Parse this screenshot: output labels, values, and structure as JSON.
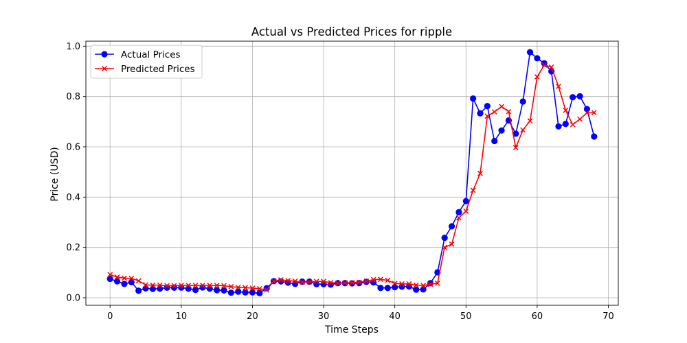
{
  "chart_data": {
    "type": "line",
    "title": "Actual vs Predicted Prices for ripple",
    "xlabel": "Time Steps",
    "ylabel": "Price (USD)",
    "xlim": [
      -3.4,
      71.4
    ],
    "ylim": [
      -0.03,
      1.02
    ],
    "xticks": [
      0,
      10,
      20,
      30,
      40,
      50,
      60,
      70
    ],
    "yticks": [
      0.0,
      0.2,
      0.4,
      0.6,
      0.8,
      1.0
    ],
    "grid": true,
    "legend_position": "upper-left",
    "series": [
      {
        "name": "Actual Prices",
        "color": "#0000ff",
        "marker": "circle",
        "values": [
          0.075,
          0.065,
          0.055,
          0.062,
          0.028,
          0.037,
          0.035,
          0.036,
          0.04,
          0.04,
          0.04,
          0.036,
          0.031,
          0.041,
          0.036,
          0.03,
          0.029,
          0.02,
          0.024,
          0.021,
          0.021,
          0.018,
          0.038,
          0.066,
          0.065,
          0.06,
          0.055,
          0.064,
          0.064,
          0.054,
          0.054,
          0.052,
          0.058,
          0.058,
          0.057,
          0.058,
          0.063,
          0.061,
          0.039,
          0.039,
          0.042,
          0.044,
          0.045,
          0.032,
          0.033,
          0.058,
          0.101,
          0.238,
          0.284,
          0.34,
          0.384,
          0.792,
          0.733,
          0.762,
          0.623,
          0.665,
          0.705,
          0.652,
          0.78,
          0.976,
          0.952,
          0.932,
          0.9,
          0.681,
          0.691,
          0.797,
          0.801,
          0.75,
          0.641
        ]
      },
      {
        "name": "Predicted Prices",
        "color": "#ff0000",
        "marker": "x",
        "values": [
          0.092,
          0.082,
          0.078,
          0.077,
          0.067,
          0.051,
          0.05,
          0.05,
          0.048,
          0.048,
          0.049,
          0.049,
          0.049,
          0.049,
          0.049,
          0.049,
          0.048,
          0.044,
          0.041,
          0.04,
          0.038,
          0.036,
          0.031,
          0.066,
          0.071,
          0.068,
          0.066,
          0.062,
          0.063,
          0.065,
          0.065,
          0.06,
          0.058,
          0.059,
          0.06,
          0.062,
          0.066,
          0.072,
          0.073,
          0.069,
          0.057,
          0.055,
          0.055,
          0.05,
          0.049,
          0.053,
          0.058,
          0.2,
          0.213,
          0.318,
          0.344,
          0.427,
          0.494,
          0.722,
          0.739,
          0.76,
          0.74,
          0.597,
          0.667,
          0.703,
          0.878,
          0.925,
          0.917,
          0.84,
          0.745,
          0.688,
          0.71,
          0.735,
          0.736
        ]
      }
    ]
  }
}
